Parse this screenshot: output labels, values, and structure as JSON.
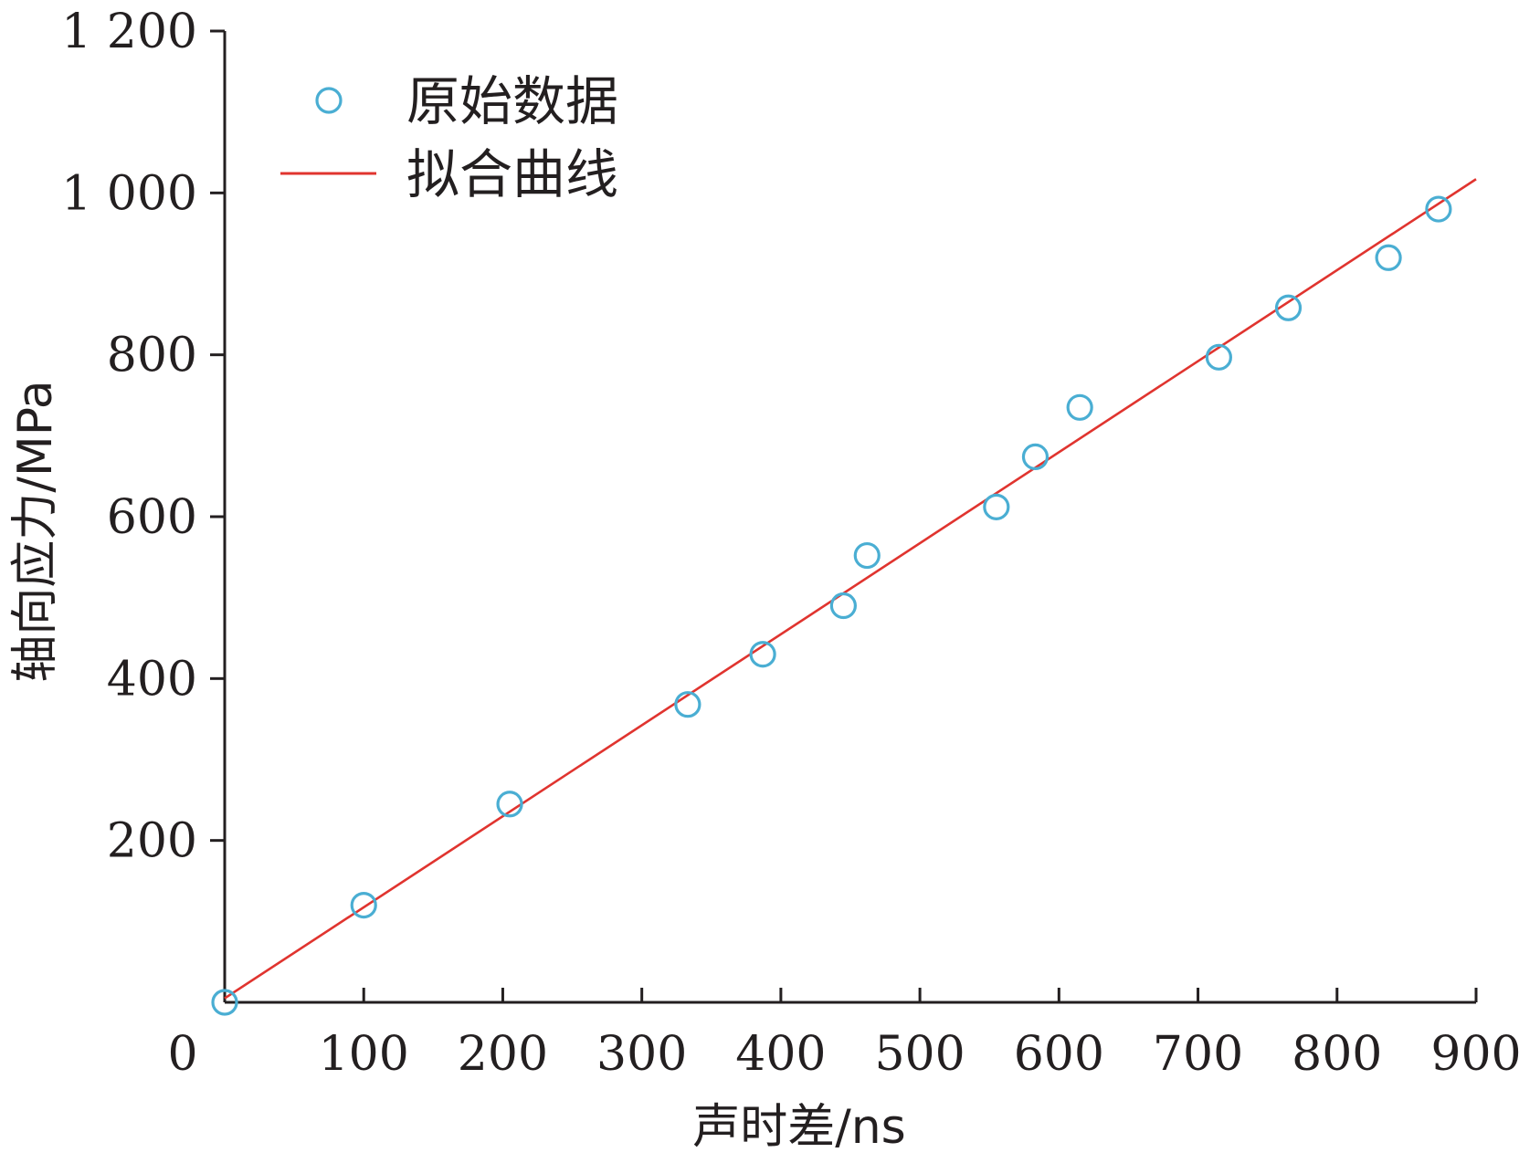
{
  "chart_data": {
    "type": "scatter",
    "title": "",
    "xlabel": "声时差/ns",
    "ylabel": "轴向应力/MPa",
    "xlim": [
      0,
      900
    ],
    "ylim": [
      0,
      1200
    ],
    "x_ticks": [
      0,
      100,
      200,
      300,
      400,
      500,
      600,
      700,
      800,
      900
    ],
    "x_tick_labels": [
      "0",
      "100",
      "200",
      "300",
      "400",
      "500",
      "600",
      "700",
      "800",
      "900"
    ],
    "y_ticks": [
      200,
      400,
      600,
      800,
      1000,
      1200
    ],
    "y_tick_labels": [
      "200",
      "400",
      "600",
      "800",
      "1 000",
      "1 200"
    ],
    "grid": false,
    "legend_position": "top-left",
    "series": [
      {
        "name": "原始数据",
        "kind": "scatter",
        "marker": "open-circle",
        "color": "#4aaed3",
        "points": [
          {
            "x": 0,
            "y": 0
          },
          {
            "x": 100,
            "y": 120
          },
          {
            "x": 205,
            "y": 245
          },
          {
            "x": 333,
            "y": 368
          },
          {
            "x": 387,
            "y": 430
          },
          {
            "x": 445,
            "y": 490
          },
          {
            "x": 462,
            "y": 552
          },
          {
            "x": 555,
            "y": 612
          },
          {
            "x": 583,
            "y": 674
          },
          {
            "x": 615,
            "y": 735
          },
          {
            "x": 715,
            "y": 797
          },
          {
            "x": 765,
            "y": 858
          },
          {
            "x": 837,
            "y": 920
          },
          {
            "x": 873,
            "y": 980
          }
        ]
      },
      {
        "name": "拟合曲线",
        "kind": "line",
        "color": "#e0342f",
        "points": [
          {
            "x": 0,
            "y": 5
          },
          {
            "x": 900,
            "y": 1017
          }
        ]
      }
    ]
  }
}
